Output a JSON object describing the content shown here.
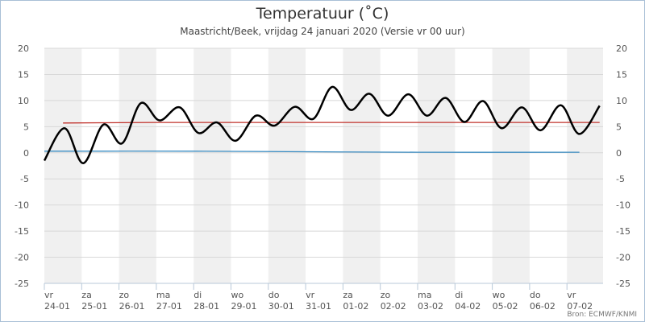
{
  "chart_data": {
    "type": "line",
    "title": "Temperatuur (˚C)",
    "subtitle": "Maastricht/Beek, vrijdag 24 januari 2020 (Versie vr 00 uur)",
    "source": "Bron: ECMWF/KNMI",
    "ylim": [
      -25,
      20
    ],
    "yticks": [
      20,
      15,
      10,
      5,
      0,
      -5,
      -10,
      -15,
      -20,
      -25
    ],
    "grid": true,
    "xlim": [
      "2020-01-24T00:00",
      "2020-02-07T23:00"
    ],
    "xticks": [
      {
        "day": "vr",
        "date": "24-01"
      },
      {
        "day": "za",
        "date": "25-01"
      },
      {
        "day": "zo",
        "date": "26-01"
      },
      {
        "day": "ma",
        "date": "27-01"
      },
      {
        "day": "di",
        "date": "28-01"
      },
      {
        "day": "wo",
        "date": "29-01"
      },
      {
        "day": "do",
        "date": "30-01"
      },
      {
        "day": "vr",
        "date": "31-01"
      },
      {
        "day": "za",
        "date": "01-02"
      },
      {
        "day": "zo",
        "date": "02-02"
      },
      {
        "day": "ma",
        "date": "03-02"
      },
      {
        "day": "di",
        "date": "04-02"
      },
      {
        "day": "wo",
        "date": "05-02"
      },
      {
        "day": "do",
        "date": "06-02"
      },
      {
        "day": "vr",
        "date": "07-02"
      }
    ],
    "series": [
      {
        "color": "#000000",
        "points": [
          [
            "2020-01-24T00:00",
            -1.5
          ],
          [
            "2020-01-24T13:00",
            4.7
          ],
          [
            "2020-01-25T01:00",
            -2.0
          ],
          [
            "2020-01-25T14:00",
            5.4
          ],
          [
            "2020-01-26T02:00",
            1.8
          ],
          [
            "2020-01-26T14:00",
            9.5
          ],
          [
            "2020-01-27T02:00",
            6.2
          ],
          [
            "2020-01-27T15:00",
            8.7
          ],
          [
            "2020-01-28T03:00",
            3.8
          ],
          [
            "2020-01-28T15:00",
            5.8
          ],
          [
            "2020-01-29T03:00",
            2.3
          ],
          [
            "2020-01-29T16:00",
            7.1
          ],
          [
            "2020-01-30T04:00",
            5.2
          ],
          [
            "2020-01-30T17:00",
            8.8
          ],
          [
            "2020-01-31T05:00",
            6.5
          ],
          [
            "2020-01-31T17:00",
            12.6
          ],
          [
            "2020-02-01T05:00",
            8.2
          ],
          [
            "2020-02-01T17:00",
            11.3
          ],
          [
            "2020-02-02T05:00",
            7.1
          ],
          [
            "2020-02-02T18:00",
            11.2
          ],
          [
            "2020-02-03T06:00",
            7.1
          ],
          [
            "2020-02-03T18:00",
            10.5
          ],
          [
            "2020-02-04T06:00",
            5.9
          ],
          [
            "2020-02-04T18:00",
            9.9
          ],
          [
            "2020-02-05T06:00",
            4.7
          ],
          [
            "2020-02-05T19:00",
            8.7
          ],
          [
            "2020-02-06T07:00",
            4.3
          ],
          [
            "2020-02-06T20:00",
            9.1
          ],
          [
            "2020-02-07T08:00",
            3.6
          ],
          [
            "2020-02-07T21:00",
            9.0
          ]
        ]
      },
      {
        "color": "#c0302a",
        "points": [
          [
            "2020-01-24T12:00",
            5.7
          ],
          [
            "2020-01-27T00:00",
            5.8
          ],
          [
            "2020-01-31T00:00",
            5.8
          ],
          [
            "2020-02-04T00:00",
            5.8
          ],
          [
            "2020-02-07T21:00",
            5.8
          ]
        ]
      },
      {
        "color": "#3a8cc2",
        "points": [
          [
            "2020-01-24T00:00",
            0.3
          ],
          [
            "2020-01-28T00:00",
            0.3
          ],
          [
            "2020-01-31T00:00",
            0.2
          ],
          [
            "2020-02-03T00:00",
            0.1
          ],
          [
            "2020-02-07T08:00",
            0.1
          ]
        ]
      }
    ]
  }
}
